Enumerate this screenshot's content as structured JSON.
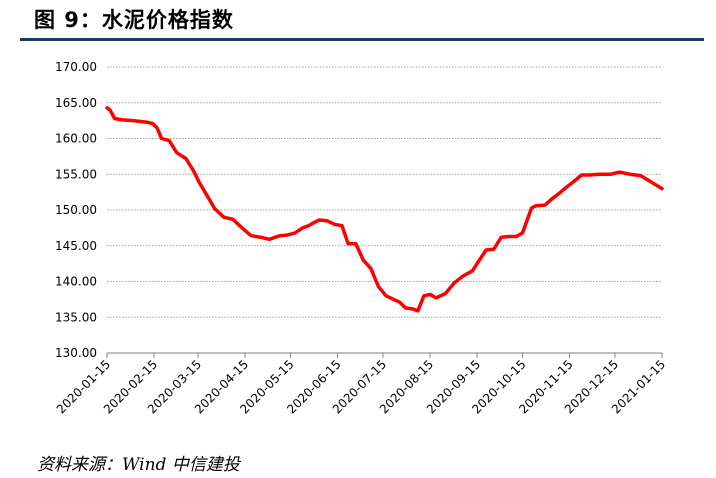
{
  "header": {
    "title": "图 9：水泥价格指数"
  },
  "footer": {
    "source": "资料来源：Wind 中信建投"
  },
  "colors": {
    "line": "#ff0000",
    "rule": "#1f3864",
    "grid": "#a0a0a0"
  },
  "chart_data": {
    "type": "line",
    "title": "",
    "xlabel": "",
    "ylabel": "",
    "ylim": [
      130,
      170
    ],
    "yticks": [
      "130.00",
      "135.00",
      "140.00",
      "145.00",
      "150.00",
      "155.00",
      "160.00",
      "165.00",
      "170.00"
    ],
    "xticks": [
      "2020-01-15",
      "2020-02-15",
      "2020-03-15",
      "2020-04-15",
      "2020-05-15",
      "2020-06-15",
      "2020-07-15",
      "2020-08-15",
      "2020-09-15",
      "2020-10-15",
      "2020-11-15",
      "2020-12-15",
      "2021-01-15"
    ],
    "xlim": [
      "2020-01-15",
      "2021-01-15"
    ],
    "grid": true,
    "series": [
      {
        "x": [
          "2020-01-15",
          "2020-01-17",
          "2020-01-20",
          "2020-01-25",
          "2020-02-01",
          "2020-02-10",
          "2020-02-14",
          "2020-02-17",
          "2020-02-20",
          "2020-02-25",
          "2020-03-01",
          "2020-03-07",
          "2020-03-12",
          "2020-03-16",
          "2020-03-21",
          "2020-03-26",
          "2020-04-01",
          "2020-04-07",
          "2020-04-13",
          "2020-04-19",
          "2020-04-25",
          "2020-05-01",
          "2020-05-08",
          "2020-05-13",
          "2020-05-18",
          "2020-05-23",
          "2020-05-27",
          "2020-05-30",
          "2020-06-03",
          "2020-06-08",
          "2020-06-13",
          "2020-06-18",
          "2020-06-22",
          "2020-06-27",
          "2020-07-02",
          "2020-07-07",
          "2020-07-12",
          "2020-07-17",
          "2020-07-22",
          "2020-07-26",
          "2020-07-30",
          "2020-08-03",
          "2020-08-07",
          "2020-08-11",
          "2020-08-15",
          "2020-08-19",
          "2020-08-25",
          "2020-08-31",
          "2020-09-06",
          "2020-09-12",
          "2020-09-16",
          "2020-09-21",
          "2020-09-26",
          "2020-10-01",
          "2020-10-06",
          "2020-10-11",
          "2020-10-15",
          "2020-10-21",
          "2020-10-24",
          "2020-10-30",
          "2020-11-03",
          "2020-11-08",
          "2020-11-13",
          "2020-11-18",
          "2020-11-23",
          "2020-11-28",
          "2020-12-05",
          "2020-12-12",
          "2020-12-18",
          "2020-12-25",
          "2021-01-01",
          "2021-01-08",
          "2021-01-15"
        ],
        "values": [
          164.3,
          164.0,
          162.8,
          162.6,
          162.5,
          162.3,
          162.1,
          161.5,
          160.0,
          159.7,
          158.0,
          157.2,
          155.5,
          153.8,
          152.0,
          150.2,
          149.0,
          148.7,
          147.5,
          146.4,
          146.2,
          145.9,
          146.4,
          146.5,
          146.8,
          147.5,
          147.8,
          148.2,
          148.6,
          148.5,
          148.0,
          147.8,
          145.3,
          145.3,
          143.0,
          141.8,
          139.3,
          138.0,
          137.5,
          137.1,
          136.3,
          136.2,
          135.9,
          138.0,
          138.2,
          137.7,
          138.3,
          139.8,
          140.8,
          141.5,
          142.8,
          144.4,
          144.5,
          146.2,
          146.3,
          146.3,
          146.8,
          150.3,
          150.6,
          150.7,
          151.5,
          152.3,
          153.2,
          154.0,
          154.9,
          154.9,
          155.0,
          155.0,
          155.3,
          155.0,
          154.8,
          153.9,
          153.0
        ]
      }
    ]
  }
}
